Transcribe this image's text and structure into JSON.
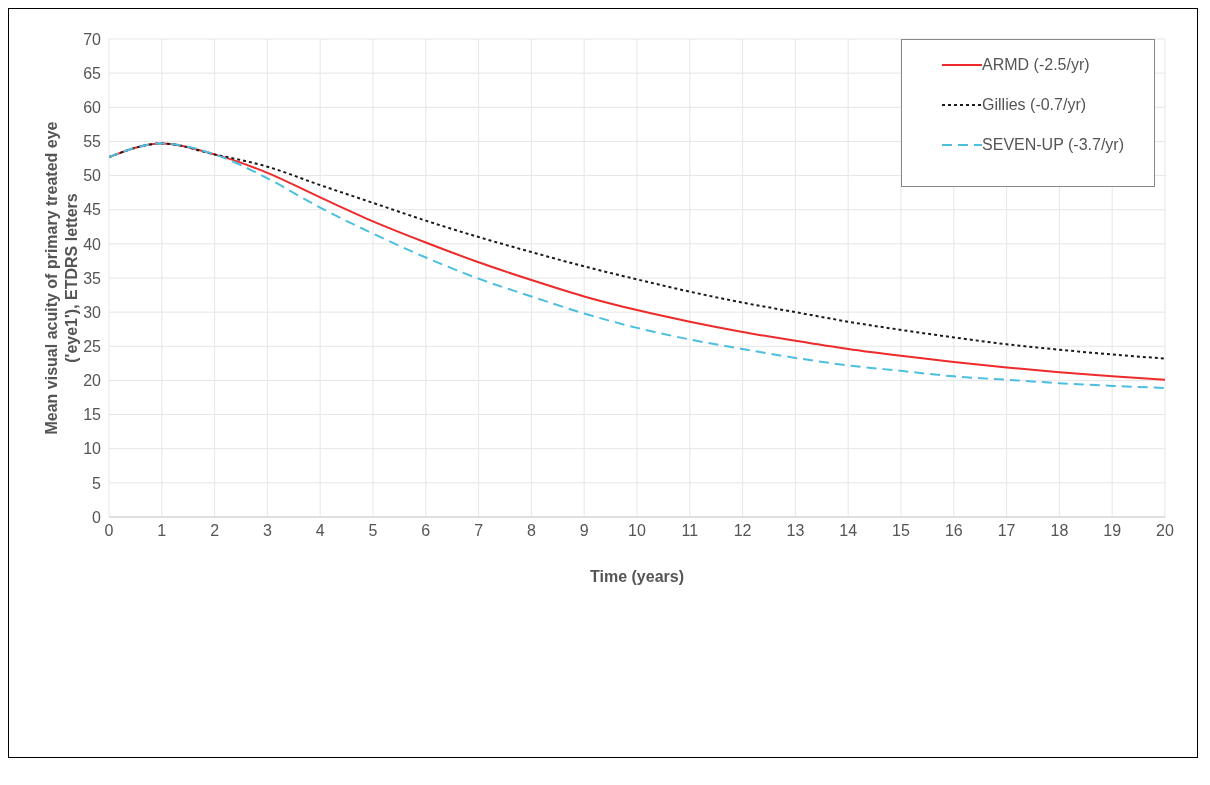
{
  "chart_data": {
    "type": "line",
    "xlabel": "Time (years)",
    "ylabel": "Mean visual acuity of primary treated eye\n('eye1'), ETDRS letters",
    "x": [
      0,
      1,
      2,
      3,
      4,
      5,
      6,
      7,
      8,
      9,
      10,
      11,
      12,
      13,
      14,
      15,
      16,
      17,
      18,
      19,
      20
    ],
    "series": [
      {
        "name": "ARMD (-2.5/yr)",
        "color": "#ee2a2a",
        "line_style": "solid",
        "values": [
          52.7,
          54.7,
          53.1,
          50.4,
          46.8,
          43.3,
          40.2,
          37.3,
          34.7,
          32.3,
          30.3,
          28.6,
          27.1,
          25.8,
          24.6,
          23.6,
          22.7,
          21.9,
          21.2,
          20.6,
          20.1
        ]
      },
      {
        "name": "Gillies (-0.7/yr)",
        "color": "#1a1a1a",
        "line_style": "dotted",
        "values": [
          52.7,
          54.7,
          53.1,
          51.3,
          48.6,
          46.0,
          43.4,
          41.0,
          38.8,
          36.7,
          34.8,
          33.0,
          31.4,
          30.0,
          28.6,
          27.4,
          26.3,
          25.3,
          24.5,
          23.8,
          23.2
        ]
      },
      {
        "name": "SEVEN-UP (-3.7/yr)",
        "color": "#4cbfe0",
        "line_style": "dashed",
        "values": [
          52.7,
          54.7,
          53.1,
          49.6,
          45.3,
          41.5,
          38.0,
          34.9,
          32.3,
          29.8,
          27.7,
          26.0,
          24.6,
          23.3,
          22.2,
          21.4,
          20.6,
          20.1,
          19.6,
          19.2,
          18.9
        ]
      }
    ],
    "xlim": [
      0,
      20
    ],
    "xticks": [
      0,
      1,
      2,
      3,
      4,
      5,
      6,
      7,
      8,
      9,
      10,
      11,
      12,
      13,
      14,
      15,
      16,
      17,
      18,
      19,
      20
    ],
    "ylim": [
      0,
      70
    ],
    "yticks": [
      0,
      5,
      10,
      15,
      20,
      25,
      30,
      35,
      40,
      45,
      50,
      55,
      60,
      65,
      70
    ],
    "grid": true,
    "legend": "top right",
    "marker": "none"
  }
}
